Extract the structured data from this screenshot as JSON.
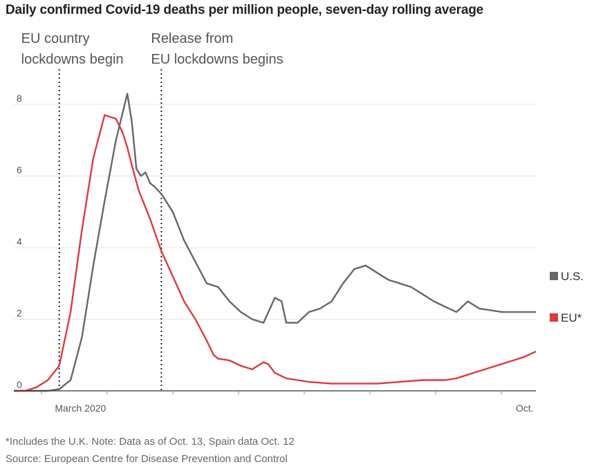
{
  "chart_data": {
    "type": "line",
    "title": "Daily confirmed Covid-19 deaths per million people, seven-day rolling average",
    "ylim": [
      0,
      8.5
    ],
    "yticks": [
      0,
      2,
      4,
      6,
      8
    ],
    "xlim": [
      0,
      230
    ],
    "x_tick_labels": [
      {
        "x": 12,
        "label": "March 2020"
      },
      {
        "x": 222,
        "label": "Oct."
      }
    ],
    "annotations": [
      {
        "x": 20,
        "lines": [
          "EU country",
          "lockdowns begin"
        ]
      },
      {
        "x": 65,
        "lines": [
          "Release from",
          "EU lockdowns begins"
        ]
      }
    ],
    "series": [
      {
        "name": "U.S.",
        "color": "#666666",
        "x": [
          0,
          15,
          20,
          25,
          30,
          35,
          40,
          45,
          50,
          52,
          54,
          56,
          58,
          60,
          62,
          65,
          70,
          75,
          80,
          85,
          90,
          95,
          100,
          105,
          110,
          115,
          118,
          120,
          122,
          125,
          130,
          135,
          140,
          145,
          150,
          155,
          160,
          165,
          170,
          175,
          180,
          185,
          190,
          195,
          200,
          205,
          210,
          215,
          220,
          225,
          230
        ],
        "values": [
          0,
          0,
          0.05,
          0.3,
          1.5,
          3.5,
          5.3,
          7.0,
          8.3,
          7.5,
          6.2,
          6.0,
          6.1,
          5.8,
          5.7,
          5.5,
          5.0,
          4.2,
          3.6,
          3.0,
          2.9,
          2.5,
          2.2,
          2.0,
          1.9,
          2.6,
          2.5,
          1.9,
          1.9,
          1.9,
          2.2,
          2.3,
          2.5,
          3.0,
          3.4,
          3.5,
          3.3,
          3.1,
          3.0,
          2.9,
          2.7,
          2.5,
          2.35,
          2.2,
          2.5,
          2.3,
          2.25,
          2.2,
          2.2,
          2.2,
          2.2
        ]
      },
      {
        "name": "EU",
        "color": "#e0383e",
        "x": [
          0,
          5,
          10,
          15,
          20,
          25,
          30,
          35,
          40,
          45,
          48,
          50,
          52,
          55,
          60,
          65,
          70,
          75,
          80,
          85,
          88,
          90,
          95,
          100,
          105,
          110,
          112,
          115,
          120,
          125,
          130,
          140,
          150,
          160,
          170,
          180,
          190,
          195,
          200,
          205,
          210,
          215,
          220,
          225,
          230
        ],
        "values": [
          0,
          0,
          0.1,
          0.3,
          0.7,
          2.2,
          4.5,
          6.5,
          7.7,
          7.6,
          7.2,
          6.8,
          6.3,
          5.6,
          4.8,
          3.9,
          3.2,
          2.5,
          2.0,
          1.4,
          1.0,
          0.9,
          0.85,
          0.7,
          0.6,
          0.8,
          0.75,
          0.5,
          0.35,
          0.3,
          0.25,
          0.2,
          0.2,
          0.2,
          0.25,
          0.3,
          0.3,
          0.35,
          0.45,
          0.55,
          0.65,
          0.75,
          0.85,
          0.95,
          1.1
        ]
      }
    ],
    "legend": [
      {
        "label": "U.S.",
        "color": "#666666"
      },
      {
        "label": "EU*",
        "color": "#e0383e"
      }
    ]
  },
  "footnotes": {
    "note": "*Includes the U.K. Note: Data as of Oct. 13, Spain data Oct. 12",
    "source": "Source: European Centre for Disease Prevention and Control"
  }
}
